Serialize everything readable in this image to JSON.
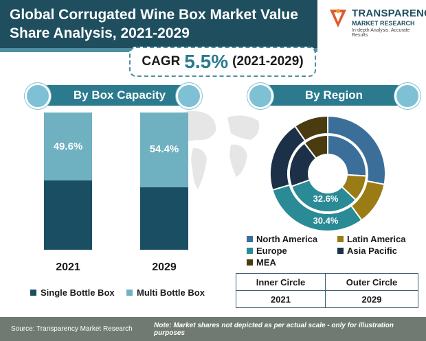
{
  "title": "Global Corrugated Wine Box Market Value Share Analysis, 2021-2029",
  "logo": {
    "name": "TRANSPARENCY",
    "sub": "MARKET RESEARCH",
    "tagline": "In-depth Analysis. Accurate Results"
  },
  "cagr": {
    "label": "CAGR",
    "value": "5.5%",
    "period": "(2021-2029)"
  },
  "colors": {
    "dark_teal": "#1a4f63",
    "light_teal": "#6fb0c1",
    "accent": "#2b7a8e",
    "olive": "#9a7b14",
    "navy": "#1c3048",
    "brown": "#4a3c10",
    "blue": "#3b6e99",
    "teal2": "#2a8a95"
  },
  "capacity": {
    "heading": "By Box Capacity",
    "legend": [
      "Single Bottle Box",
      "Multi Bottle Box"
    ]
  },
  "region": {
    "heading": "By Region",
    "legend": [
      "North America",
      "Latin America",
      "Europe",
      "Asia Pacific",
      "MEA"
    ],
    "inner_label": "32.6%",
    "outer_label": "30.4%"
  },
  "circles_table": {
    "headers": [
      "Inner Circle",
      "Outer Circle"
    ],
    "values": [
      "2021",
      "2029"
    ]
  },
  "footer": {
    "source": "Source: Transparency Market Research",
    "note": "Note: Market shares not depicted as per actual scale - only for illustration purposes"
  },
  "chart_data": [
    {
      "type": "bar",
      "stacked": true,
      "title": "By Box Capacity",
      "categories": [
        "2021",
        "2029"
      ],
      "series": [
        {
          "name": "Single Bottle Box",
          "values": [
            50.4,
            45.6
          ]
        },
        {
          "name": "Multi Bottle Box",
          "values": [
            49.6,
            54.4
          ]
        }
      ],
      "data_labels": [
        "49.6%",
        "54.4%"
      ],
      "ylim": [
        0,
        100
      ]
    },
    {
      "type": "pie",
      "subtype": "double-donut",
      "title": "By Region",
      "categories": [
        "North America",
        "Latin America",
        "Europe",
        "Asia Pacific",
        "MEA"
      ],
      "series": [
        {
          "name": "Inner Circle",
          "values": [
            26,
            11,
            32.6,
            20,
            10.4
          ]
        },
        {
          "name": "Outer Circle",
          "values": [
            28,
            12,
            30.4,
            20,
            9.6
          ]
        }
      ],
      "data_labels": [
        "32.6%",
        "30.4%"
      ]
    }
  ]
}
